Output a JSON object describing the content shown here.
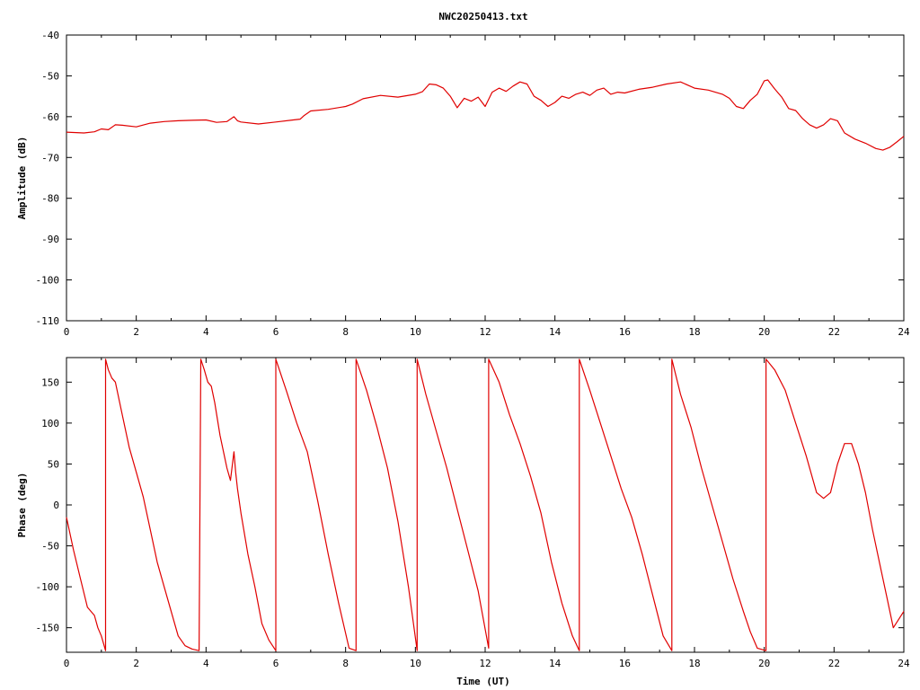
{
  "title": "NWC20250413.txt",
  "colors": {
    "trace": "#e00000",
    "frame": "#000000",
    "background": "#ffffff"
  },
  "chart_data": [
    {
      "type": "line",
      "ylabel": "Amplitude (dB)",
      "xlabel": "",
      "xlim": [
        0,
        24
      ],
      "ylim": [
        -110,
        -40
      ],
      "xticks": [
        "0",
        "2",
        "4",
        "6",
        "8",
        "10",
        "12",
        "14",
        "16",
        "18",
        "20",
        "22",
        "24"
      ],
      "yticks": [
        "-40",
        "-50",
        "-60",
        "-70",
        "-80",
        "-90",
        "-100",
        "-110"
      ],
      "grid": false,
      "series": [
        {
          "x": [
            0,
            0.5,
            0.8,
            1.0,
            1.2,
            1.4,
            1.6,
            2.0,
            2.4,
            2.8,
            3.2,
            3.6,
            4.0,
            4.3,
            4.6,
            4.8,
            4.9,
            5.0,
            5.5,
            6.0,
            6.5,
            6.7,
            6.8,
            7.0,
            7.5,
            8.0,
            8.2,
            8.5,
            9.0,
            9.5,
            10.0,
            10.2,
            10.4,
            10.6,
            10.8,
            11.0,
            11.2,
            11.4,
            11.6,
            11.8,
            12.0,
            12.2,
            12.4,
            12.6,
            12.8,
            13.0,
            13.2,
            13.4,
            13.6,
            13.8,
            14.0,
            14.2,
            14.4,
            14.6,
            14.8,
            15.0,
            15.2,
            15.4,
            15.6,
            15.8,
            16.0,
            16.4,
            16.8,
            17.2,
            17.6,
            18.0,
            18.4,
            18.8,
            19.0,
            19.2,
            19.4,
            19.6,
            19.8,
            20.0,
            20.1,
            20.3,
            20.5,
            20.7,
            20.9,
            21.1,
            21.3,
            21.5,
            21.7,
            21.9,
            22.1,
            22.3,
            22.6,
            22.9,
            23.2,
            23.4,
            23.6,
            23.8,
            24.0
          ],
          "y": [
            -63.8,
            -64.0,
            -63.7,
            -63.0,
            -63.2,
            -62.0,
            -62.1,
            -62.5,
            -61.6,
            -61.2,
            -61.0,
            -60.9,
            -60.8,
            -61.4,
            -61.2,
            -60.0,
            -61.0,
            -61.3,
            -61.8,
            -61.3,
            -60.8,
            -60.6,
            -59.8,
            -58.6,
            -58.2,
            -57.5,
            -56.9,
            -55.6,
            -54.8,
            -55.2,
            -54.5,
            -53.9,
            -52.0,
            -52.2,
            -53.0,
            -55.0,
            -57.8,
            -55.5,
            -56.2,
            -55.2,
            -57.5,
            -54.0,
            -53.0,
            -53.8,
            -52.5,
            -51.5,
            -52.0,
            -55.0,
            -56.0,
            -57.5,
            -56.5,
            -55.0,
            -55.5,
            -54.5,
            -54.0,
            -54.8,
            -53.5,
            -53.0,
            -54.5,
            -54.0,
            -54.2,
            -53.3,
            -52.8,
            -52.0,
            -51.5,
            -53.0,
            -53.5,
            -54.5,
            -55.5,
            -57.5,
            -58.0,
            -56.0,
            -54.5,
            -51.2,
            -51.0,
            -53.2,
            -55.2,
            -58.0,
            -58.5,
            -60.5,
            -62.0,
            -62.8,
            -62.0,
            -60.5,
            -61.0,
            -64.0,
            -65.5,
            -66.5,
            -67.8,
            -68.2,
            -67.5,
            -66.2,
            -64.8
          ]
        }
      ]
    },
    {
      "type": "line",
      "ylabel": "Phase (deg)",
      "xlabel": "Time (UT)",
      "xlim": [
        0,
        24
      ],
      "ylim": [
        -180,
        180
      ],
      "xticks": [
        "0",
        "2",
        "4",
        "6",
        "8",
        "10",
        "12",
        "14",
        "16",
        "18",
        "20",
        "22",
        "24"
      ],
      "yticks": [
        "150",
        "100",
        "50",
        "0",
        "-50",
        "-100",
        "-150"
      ],
      "grid": false,
      "series": [
        {
          "x": [
            0,
            0.2,
            0.4,
            0.6,
            0.8,
            0.9,
            1.0,
            1.12,
            1.12,
            1.2,
            1.3,
            1.4,
            1.6,
            1.8,
            2.0,
            2.2,
            2.4,
            2.6,
            2.8,
            3.0,
            3.2,
            3.4,
            3.6,
            3.8,
            3.85,
            3.85,
            3.95,
            4.05,
            4.15,
            4.25,
            4.4,
            4.6,
            4.7,
            4.8,
            4.85,
            4.9,
            5.0,
            5.2,
            5.4,
            5.6,
            5.8,
            6.0,
            6.0,
            6.3,
            6.6,
            6.9,
            7.2,
            7.5,
            7.8,
            8.1,
            8.3,
            8.3,
            8.6,
            8.9,
            9.2,
            9.5,
            9.8,
            10.05,
            10.05,
            10.3,
            10.6,
            10.9,
            11.2,
            11.5,
            11.8,
            12.1,
            12.1,
            12.4,
            12.7,
            13.0,
            13.3,
            13.6,
            13.9,
            14.2,
            14.5,
            14.7,
            14.7,
            15.0,
            15.3,
            15.6,
            15.9,
            16.2,
            16.5,
            16.8,
            17.1,
            17.35,
            17.35,
            17.6,
            17.9,
            18.2,
            18.5,
            18.8,
            19.1,
            19.4,
            19.6,
            19.8,
            20.05,
            20.05,
            20.3,
            20.6,
            20.9,
            21.2,
            21.5,
            21.7,
            21.9,
            22.1,
            22.3,
            22.5,
            22.7,
            22.9,
            23.1,
            23.3,
            23.5,
            23.7,
            24.0
          ],
          "y": [
            -15,
            -55,
            -90,
            -125,
            -135,
            -150,
            -160,
            -178,
            178,
            165,
            155,
            150,
            110,
            70,
            40,
            10,
            -30,
            -70,
            -100,
            -130,
            -160,
            -172,
            -176,
            -178,
            178,
            178,
            165,
            150,
            145,
            125,
            85,
            45,
            30,
            65,
            40,
            20,
            -10,
            -60,
            -100,
            -145,
            -165,
            -178,
            178,
            140,
            100,
            65,
            5,
            -60,
            -120,
            -175,
            -178,
            178,
            140,
            95,
            45,
            -20,
            -100,
            -178,
            178,
            135,
            90,
            45,
            -5,
            -55,
            -105,
            -175,
            178,
            150,
            110,
            75,
            35,
            -10,
            -70,
            -120,
            -160,
            -178,
            178,
            140,
            100,
            60,
            20,
            -15,
            -60,
            -110,
            -160,
            -178,
            178,
            135,
            95,
            45,
            0,
            -45,
            -90,
            -130,
            -155,
            -175,
            -178,
            178,
            165,
            140,
            100,
            60,
            15,
            8,
            15,
            50,
            75,
            75,
            50,
            15,
            -30,
            -70,
            -110,
            -150,
            -130
          ]
        }
      ]
    }
  ]
}
